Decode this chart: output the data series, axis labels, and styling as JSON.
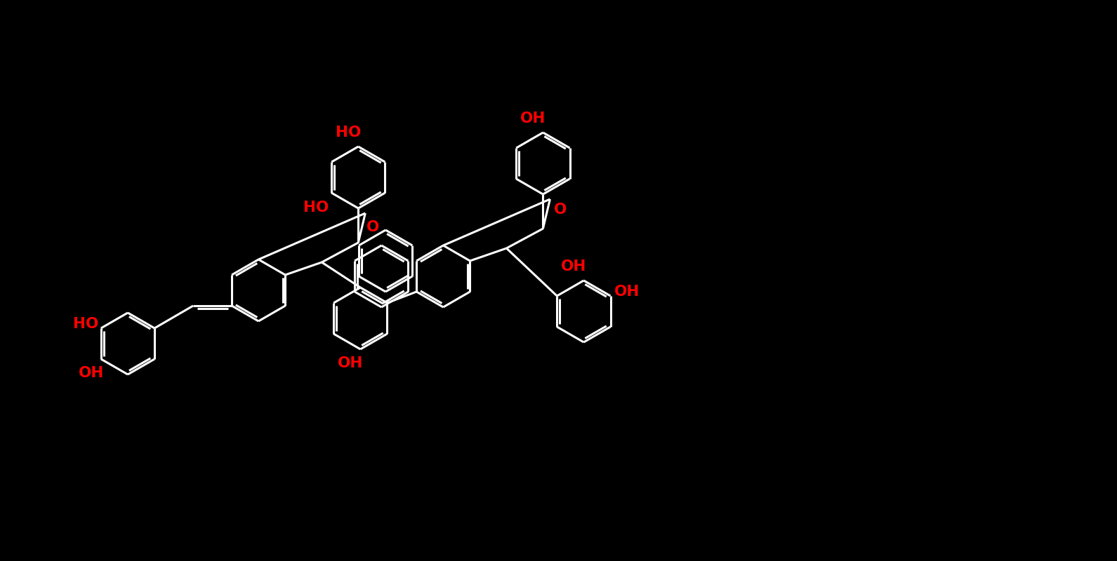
{
  "fig_width": 15.91,
  "fig_height": 8.0,
  "dpi": 100,
  "bg": "#000000",
  "bc": "#ffffff",
  "lc": "#ff0000",
  "R": 44,
  "lw": 2.2,
  "fs": 15.5,
  "labels": {
    "HO_top": [
      793,
      27,
      "HO"
    ],
    "OH_upper_right": [
      855,
      138,
      "OH"
    ],
    "OH_far_right_top": [
      1468,
      182,
      "OH"
    ],
    "OH_far_right_mid": [
      1468,
      252,
      "OH"
    ],
    "HO_left": [
      492,
      122,
      "HO"
    ],
    "O_left_furan": [
      575,
      157,
      "O"
    ],
    "O_right_furan": [
      1148,
      430,
      "O"
    ],
    "HO_far_left": [
      57,
      427,
      "HO"
    ],
    "OH_bottom_mid": [
      575,
      622,
      "OH"
    ],
    "OH_bottom_left": [
      230,
      633,
      "OH"
    ]
  }
}
